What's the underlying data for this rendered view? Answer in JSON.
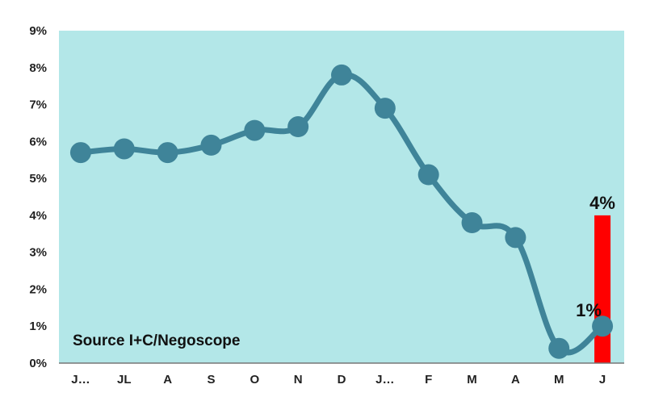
{
  "chart_data": {
    "type": "line",
    "categories": [
      "J…",
      "JL",
      "A",
      "S",
      "O",
      "N",
      "D",
      "J…",
      "F",
      "M",
      "A",
      "M",
      "J"
    ],
    "series": [
      {
        "type": "line",
        "values": [
          5.7,
          5.8,
          5.7,
          5.9,
          6.3,
          6.4,
          7.8,
          6.9,
          5.1,
          3.8,
          3.4,
          0.4,
          1.0
        ]
      },
      {
        "type": "bar",
        "category_index": 12,
        "value": 4.0
      }
    ],
    "y_ticks": [
      "0%",
      "1%",
      "2%",
      "3%",
      "4%",
      "5%",
      "6%",
      "7%",
      "8%",
      "9%"
    ],
    "ylim": [
      0,
      9
    ],
    "data_labels": [
      {
        "text": "1%",
        "category_index": 12,
        "value": 1.0
      },
      {
        "text": "4%",
        "category_index": 12,
        "value": 4.0
      }
    ],
    "annotation": "Source I+C/Negoscope",
    "grid": false,
    "colors": {
      "plot_background": "#b3e7e8",
      "line": "#3f8499",
      "bar": "#ff0000",
      "axis": "#777777"
    }
  }
}
